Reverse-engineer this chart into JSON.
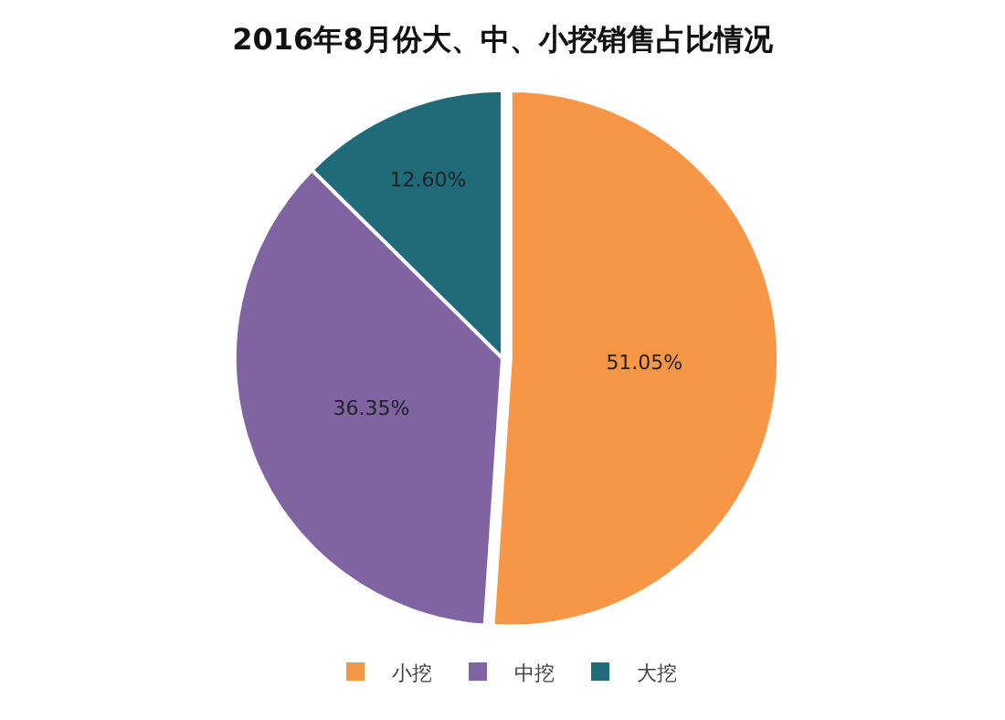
{
  "chart_data": {
    "type": "pie",
    "title": "2016年8月份大、中、小挖销售占比情况",
    "categories": [
      "小挖",
      "中挖",
      "大挖"
    ],
    "values": [
      51.05,
      36.35,
      12.6
    ],
    "value_labels": [
      "51.05%",
      "36.35%",
      "12.60%"
    ],
    "colors": [
      "#f79646",
      "#8064a2",
      "#1f6b7a"
    ],
    "legend": "bottom"
  }
}
